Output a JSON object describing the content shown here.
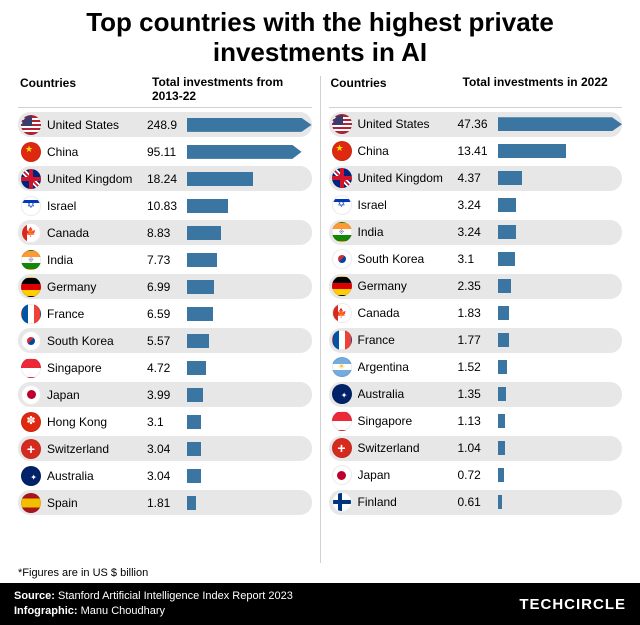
{
  "title": "Top countries with the highest private investments in AI",
  "title_fontsize": 26,
  "column_headers": {
    "country": "Countries",
    "header_fontsize": 12
  },
  "tables": [
    {
      "value_header": "Total investments from 2013-22",
      "bar_max": 100,
      "rows": [
        {
          "country": "United States",
          "flag": "us",
          "value": 248.9,
          "bar": 100,
          "clip": true
        },
        {
          "country": "China",
          "flag": "cn",
          "value": 95.11,
          "bar": 92,
          "clip": true
        },
        {
          "country": "United Kingdom",
          "flag": "gb",
          "value": 18.24,
          "bar": 53
        },
        {
          "country": "Israel",
          "flag": "il",
          "value": 10.83,
          "bar": 33
        },
        {
          "country": "Canada",
          "flag": "ca",
          "value": 8.83,
          "bar": 27
        },
        {
          "country": "India",
          "flag": "in",
          "value": 7.73,
          "bar": 24
        },
        {
          "country": "Germany",
          "flag": "de",
          "value": 6.99,
          "bar": 22
        },
        {
          "country": "France",
          "flag": "fr",
          "value": 6.59,
          "bar": 21
        },
        {
          "country": "South Korea",
          "flag": "kr",
          "value": 5.57,
          "bar": 18
        },
        {
          "country": "Singapore",
          "flag": "sg",
          "value": 4.72,
          "bar": 15
        },
        {
          "country": "Japan",
          "flag": "jp",
          "value": 3.99,
          "bar": 13
        },
        {
          "country": "Hong Kong",
          "flag": "hk",
          "value": 3.1,
          "bar": 11
        },
        {
          "country": "Switzerland",
          "flag": "ch",
          "value": 3.04,
          "bar": 11
        },
        {
          "country": "Australia",
          "flag": "au",
          "value": 3.04,
          "bar": 11
        },
        {
          "country": "Spain",
          "flag": "es",
          "value": 1.81,
          "bar": 7
        }
      ]
    },
    {
      "value_header": "Total investments in 2022",
      "bar_max": 100,
      "rows": [
        {
          "country": "United States",
          "flag": "us",
          "value": 47.36,
          "bar": 100,
          "clip": true
        },
        {
          "country": "China",
          "flag": "cn",
          "value": 13.41,
          "bar": 55
        },
        {
          "country": "United Kingdom",
          "flag": "gb",
          "value": 4.37,
          "bar": 20
        },
        {
          "country": "Israel",
          "flag": "il",
          "value": 3.24,
          "bar": 15
        },
        {
          "country": "India",
          "flag": "in",
          "value": 3.24,
          "bar": 15
        },
        {
          "country": "South Korea",
          "flag": "kr",
          "value": 3.1,
          "bar": 14
        },
        {
          "country": "Germany",
          "flag": "de",
          "value": 2.35,
          "bar": 11
        },
        {
          "country": "Canada",
          "flag": "ca",
          "value": 1.83,
          "bar": 9
        },
        {
          "country": "France",
          "flag": "fr",
          "value": 1.77,
          "bar": 9
        },
        {
          "country": "Argentina",
          "flag": "ar",
          "value": 1.52,
          "bar": 8
        },
        {
          "country": "Australia",
          "flag": "au",
          "value": 1.35,
          "bar": 7
        },
        {
          "country": "Singapore",
          "flag": "sg",
          "value": 1.13,
          "bar": 6
        },
        {
          "country": "Switzerland",
          "flag": "ch",
          "value": 1.04,
          "bar": 6
        },
        {
          "country": "Japan",
          "flag": "jp",
          "value": 0.72,
          "bar": 5
        },
        {
          "country": "Finland",
          "flag": "fi",
          "value": 0.61,
          "bar": 4
        }
      ]
    }
  ],
  "row_alt_bg": "#e7e7e7",
  "bar_color": "#3b76a3",
  "text_fontsize": 12,
  "footnote": "*Figures are in US $ billion",
  "footnote_fontsize": 11,
  "footer": {
    "source_label": "Source:",
    "source_value": "Stanford Artificial Intelligence Index Report 2023",
    "infographic_label": "Infographic:",
    "infographic_value": "Manu Choudhary",
    "brand": "TECHCIRCLE",
    "fontsize": 11,
    "brand_fontsize": 15
  }
}
